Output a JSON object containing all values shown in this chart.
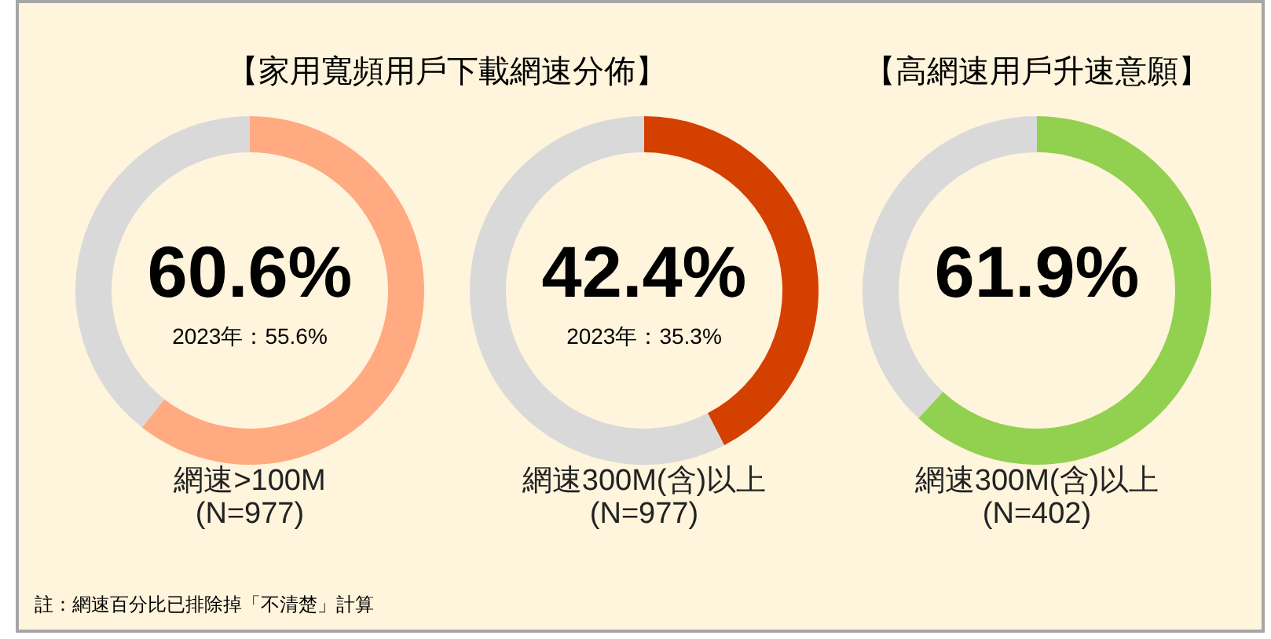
{
  "chart_data": [
    {
      "type": "donut",
      "title": "【家用寬頻用戶下載網速分佈】",
      "subtitle": "2023年：55.6%",
      "categories": [
        null,
        null
      ],
      "values": [
        60.6,
        39.4
      ],
      "colors": [
        "#ffaa80",
        "#d9d9d9"
      ],
      "value_labels": [
        "60.6%",
        null
      ],
      "annotations": [
        "網速>100M",
        "(N=977)",
        "註：網速百分比已排除掉「不清楚」計算"
      ]
    },
    {
      "type": "donut",
      "subtitle": "2023年：35.3%",
      "categories": [
        null,
        null
      ],
      "values": [
        42.4,
        57.6
      ],
      "colors": [
        "#d44000",
        "#d9d9d9"
      ],
      "value_labels": [
        "42.4%",
        null
      ],
      "annotations": [
        "網速300M(含)以上",
        "(N=977)"
      ]
    },
    {
      "type": "donut",
      "title": "【高網速用戶升速意願】",
      "categories": [
        null,
        null
      ],
      "values": [
        61.9,
        38.1
      ],
      "colors": [
        "#92d050",
        "#d9d9d9"
      ],
      "value_labels": [
        "61.9%",
        null
      ],
      "annotations": [
        "網速300M(含)以上",
        "(N=402)"
      ]
    }
  ]
}
